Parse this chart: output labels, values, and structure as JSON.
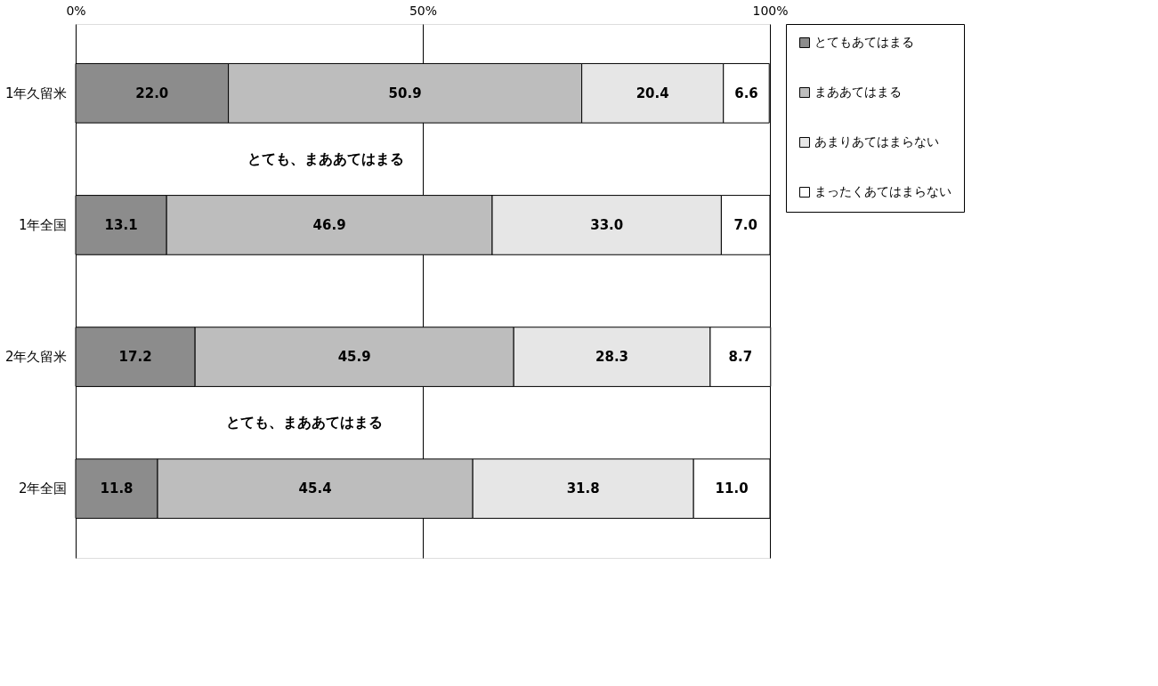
{
  "chart_data": {
    "type": "bar",
    "orientation": "horizontal",
    "stacked": true,
    "categories": [
      "1年久留米",
      "1年全国",
      "2年久留米",
      "2年全国"
    ],
    "series": [
      {
        "name": "とてもあてはまる",
        "color": "#8c8c8c",
        "values": [
          22.0,
          13.1,
          17.2,
          11.8
        ],
        "value_labels": [
          "22.0",
          "13.1",
          "17.2",
          "11.8"
        ]
      },
      {
        "name": "まああてはまる",
        "color": "#bdbdbd",
        "values": [
          50.9,
          46.9,
          45.9,
          45.4
        ],
        "value_labels": [
          "50.9",
          "46.9",
          "45.9",
          "45.4"
        ]
      },
      {
        "name": "あまりあてはまらない",
        "color": "#e6e6e6",
        "values": [
          20.4,
          33.0,
          28.3,
          31.8
        ],
        "value_labels": [
          "20.4",
          "33.0",
          "28.3",
          "31.8"
        ]
      },
      {
        "name": "まったくあてはまらない",
        "color": "#ffffff",
        "values": [
          6.6,
          7.0,
          8.7,
          11.0
        ],
        "value_labels": [
          "6.6",
          "7.0",
          "8.7",
          "11.0"
        ]
      }
    ],
    "xlim": [
      0,
      100
    ],
    "xticks": [
      {
        "value": 0,
        "label": "0%"
      },
      {
        "value": 50,
        "label": "50%"
      },
      {
        "value": 100,
        "label": "100%"
      }
    ],
    "grid": "x",
    "legend": "right",
    "annotations": [
      "とても、まああてはまる",
      "とても、まああてはまる"
    ]
  }
}
